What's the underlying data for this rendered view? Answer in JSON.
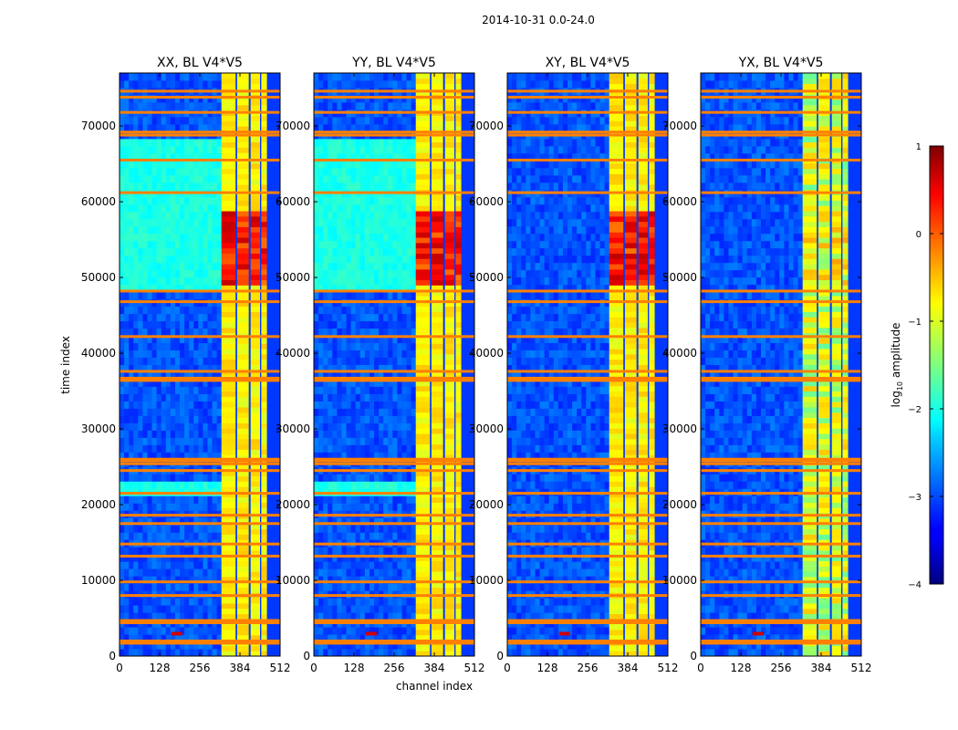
{
  "chart_data": {
    "type": "heatmap",
    "suptitle": "2014-10-31 0.0-24.0",
    "xlabel": "channel index",
    "ylabel": "time index",
    "xlim": [
      0,
      512
    ],
    "ylim": [
      0,
      77000
    ],
    "xticks": [
      0,
      128,
      256,
      384,
      512
    ],
    "yticks": [
      0,
      10000,
      20000,
      30000,
      40000,
      50000,
      60000,
      70000
    ],
    "panels": [
      {
        "title": "XX, BL V4*V5",
        "pol": "XX"
      },
      {
        "title": "YY, BL V4*V5",
        "pol": "YY"
      },
      {
        "title": "XY, BL V4*V5",
        "pol": "XY"
      },
      {
        "title": "YX, BL V4*V5",
        "pol": "YX"
      }
    ],
    "colorbar": {
      "label": "log10 amplitude",
      "label_base": "log",
      "label_sub": "10",
      "label_rest": " amplitude",
      "range": [
        -4,
        1
      ],
      "ticks": [
        1,
        0,
        -1,
        -2,
        -3,
        -4
      ],
      "tick_labels": [
        "1",
        "0",
        "−1",
        "−2",
        "−3",
        "−4"
      ],
      "colormap": "jet"
    },
    "bright_channel_band": [
      325,
      470
    ],
    "flag_rows": [
      1700,
      2000,
      4400,
      4700,
      8000,
      9800,
      13200,
      14800,
      17500,
      18600,
      21500,
      24500,
      25400,
      25800,
      26000,
      36400,
      36700,
      37600,
      42200,
      46800,
      48200,
      61200,
      65500,
      68800,
      69200,
      71800,
      73800,
      74600
    ]
  }
}
